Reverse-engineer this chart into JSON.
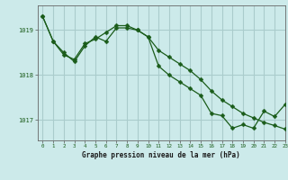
{
  "title": "Graphe pression niveau de la mer (hPa)",
  "background_color": "#cceaea",
  "grid_color": "#aacccc",
  "line_color": "#1a5c1a",
  "xlim": [
    -0.5,
    23
  ],
  "ylim": [
    1016.55,
    1019.55
  ],
  "yticks": [
    1017,
    1018,
    1019
  ],
  "xticks": [
    0,
    1,
    2,
    3,
    4,
    5,
    6,
    7,
    8,
    9,
    10,
    11,
    12,
    13,
    14,
    15,
    16,
    17,
    18,
    19,
    20,
    21,
    22,
    23
  ],
  "series1_x": [
    0,
    1,
    2,
    3,
    4,
    5,
    6,
    7,
    8,
    9,
    10,
    11,
    12,
    13,
    14,
    15,
    16,
    17,
    18,
    19,
    20,
    21,
    22,
    23
  ],
  "series1_y": [
    1019.3,
    1018.75,
    1018.5,
    1018.3,
    1018.65,
    1018.85,
    1018.75,
    1019.05,
    1019.05,
    1019.0,
    1018.85,
    1018.55,
    1018.4,
    1018.25,
    1018.1,
    1017.9,
    1017.65,
    1017.45,
    1017.3,
    1017.15,
    1017.05,
    1016.95,
    1016.88,
    1016.8
  ],
  "series2_x": [
    0,
    1,
    2,
    3,
    4,
    5,
    6,
    7,
    8,
    9,
    10,
    11,
    12,
    13,
    14,
    15,
    16,
    17,
    18,
    19,
    20,
    21,
    22,
    23
  ],
  "series2_y": [
    1019.3,
    1018.75,
    1018.45,
    1018.35,
    1018.7,
    1018.8,
    1018.95,
    1019.1,
    1019.1,
    1019.0,
    1018.85,
    1018.2,
    1018.0,
    1017.85,
    1017.7,
    1017.55,
    1017.15,
    1017.1,
    1016.82,
    1016.9,
    1016.82,
    1017.2,
    1017.08,
    1017.35
  ]
}
